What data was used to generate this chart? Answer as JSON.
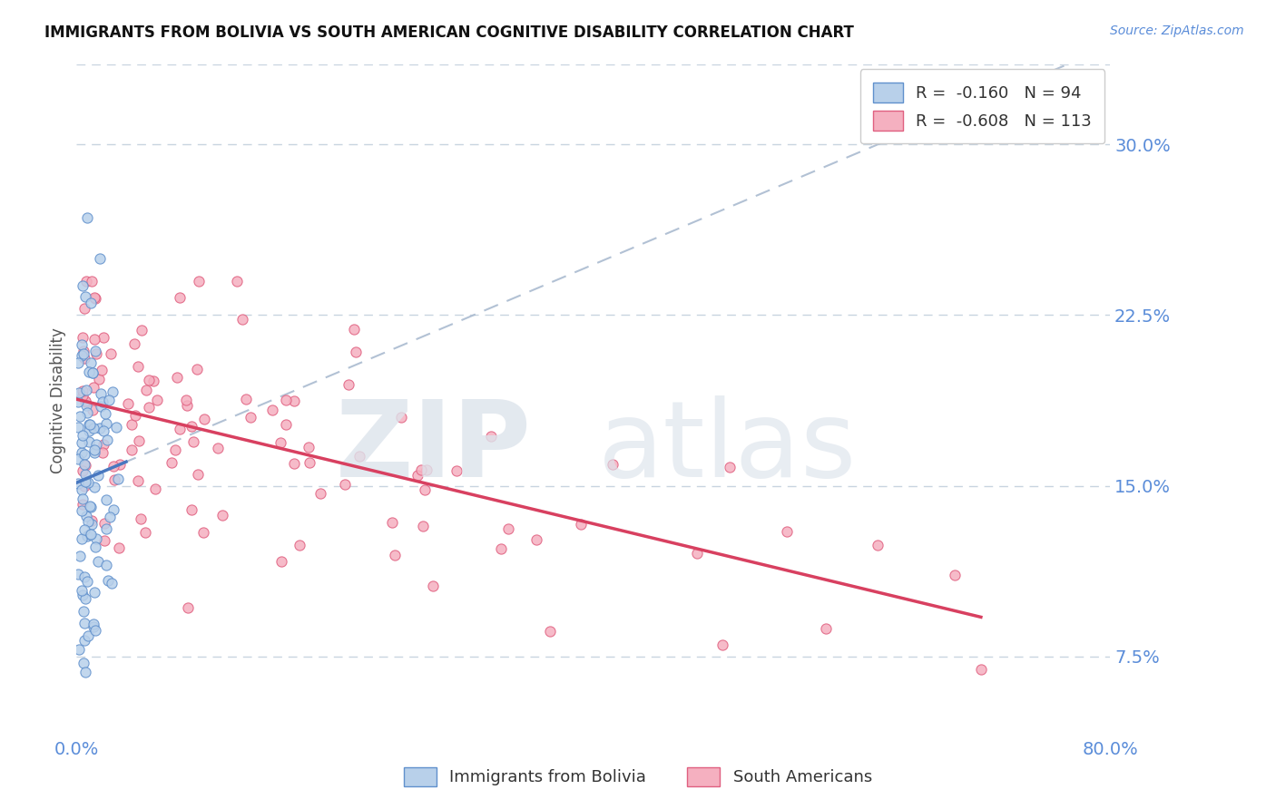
{
  "title": "IMMIGRANTS FROM BOLIVIA VS SOUTH AMERICAN COGNITIVE DISABILITY CORRELATION CHART",
  "source": "Source: ZipAtlas.com",
  "ylabel": "Cognitive Disability",
  "legend_label1": "Immigrants from Bolivia",
  "legend_label2": "South Americans",
  "r1": -0.16,
  "n1": 94,
  "r2": -0.608,
  "n2": 113,
  "xlim": [
    0.0,
    0.8
  ],
  "ylim": [
    0.04,
    0.335
  ],
  "yticks": [
    0.075,
    0.15,
    0.225,
    0.3
  ],
  "ytick_labels": [
    "7.5%",
    "15.0%",
    "22.5%",
    "30.0%"
  ],
  "xticks": [
    0.0,
    0.8
  ],
  "xtick_labels": [
    "0.0%",
    "80.0%"
  ],
  "color_blue_fill": "#b8d0ea",
  "color_pink_fill": "#f5b0c0",
  "color_blue_edge": "#6090cc",
  "color_pink_edge": "#e06080",
  "color_blue_line": "#4878c0",
  "color_pink_line": "#d84060",
  "color_dashed": "#aabbd0",
  "background": "#ffffff",
  "grid_color": "#c8d4e0",
  "title_color": "#111111",
  "source_color": "#5b8dd9",
  "tick_color": "#5b8dd9",
  "legend_text_color": "#333333",
  "watermark_color": "#dde4ec"
}
